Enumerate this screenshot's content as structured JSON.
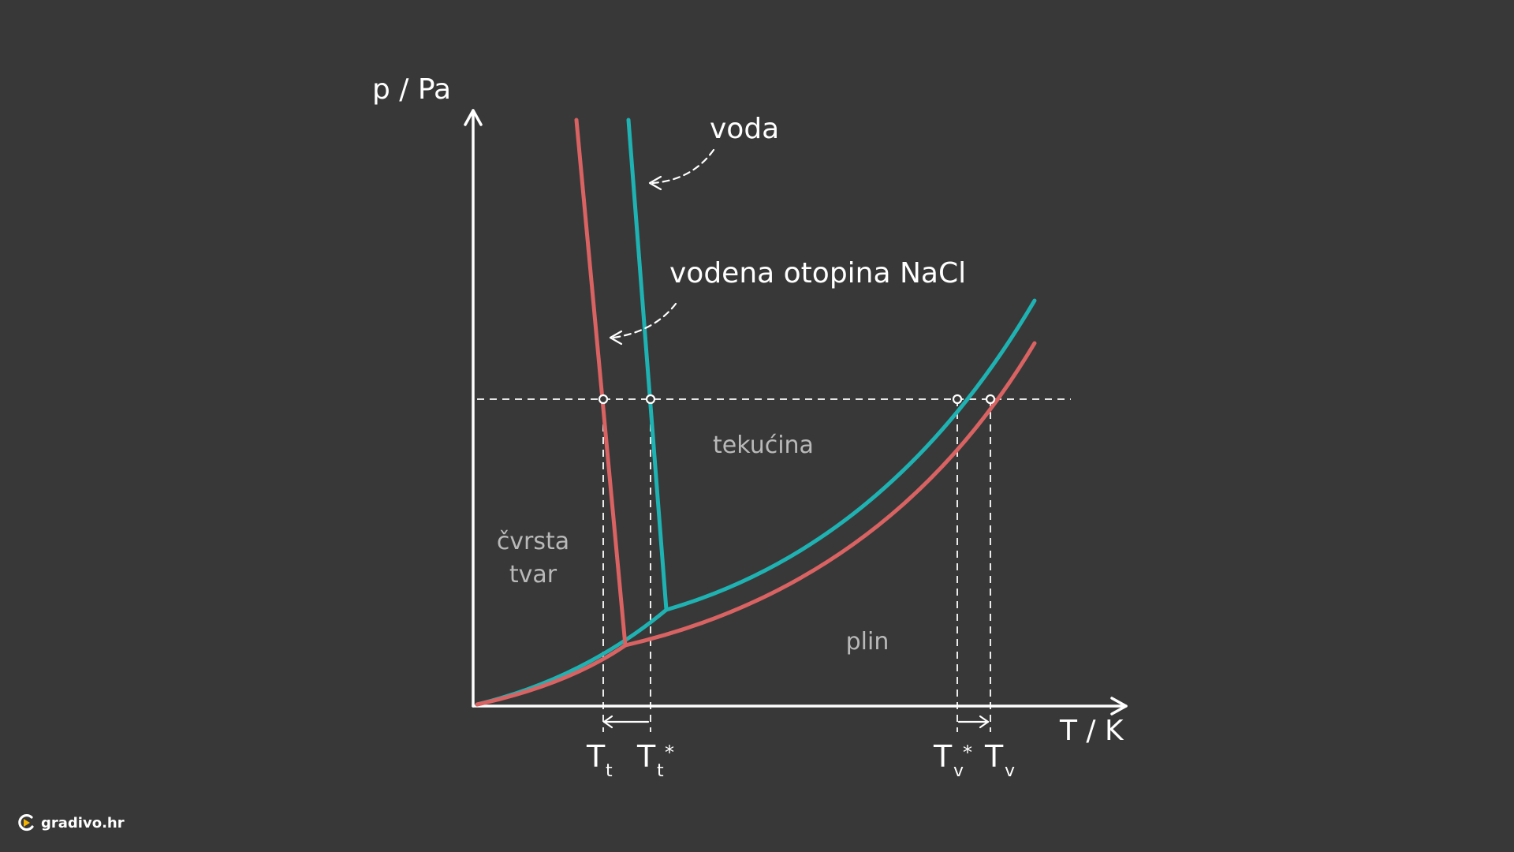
{
  "diagram": {
    "y_axis_label": "p / Pa",
    "x_axis_label": "T / K",
    "legend": {
      "water": "voda",
      "solution": "vodena otopina NaCl"
    },
    "regions": {
      "solid_line1": "čvrsta",
      "solid_line2": "tvar",
      "liquid": "tekućina",
      "gas": "plin"
    },
    "ticks": {
      "freeze_solution": {
        "main": "T",
        "sub": "t",
        "star": ""
      },
      "freeze_water": {
        "main": "T",
        "sub": "t",
        "star": "*"
      },
      "boil_water": {
        "main": "T",
        "sub": "v",
        "star": "*"
      },
      "boil_solution": {
        "main": "T",
        "sub": "v",
        "star": ""
      }
    },
    "colors": {
      "water": "#1fb2b2",
      "solution": "#d96262",
      "background": "#383838"
    }
  },
  "logo": {
    "text": "gradivo.hr",
    "icon": "gradivo-logo-icon"
  }
}
